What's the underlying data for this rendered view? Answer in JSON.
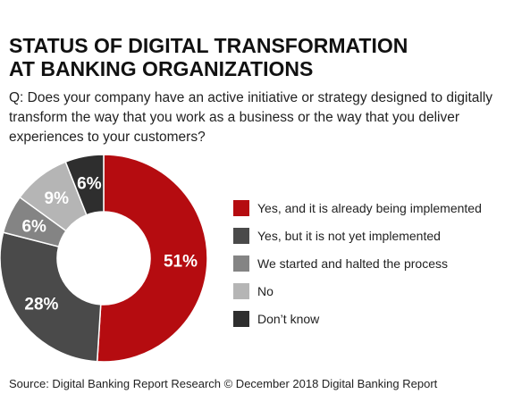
{
  "title_lines": [
    "STATUS OF DIGITAL TRANSFORMATION",
    "AT BANKING ORGANIZATIONS"
  ],
  "question": "Q: Does your company have an active initiative or strategy designed to digitally transform the way that you work as a business or the way that you deliver experiences to your customers?",
  "source": "Source: Digital Banking Report Research © December 2018 Digital Banking Report",
  "chart_data": {
    "type": "pie",
    "style": "donut",
    "categories": [
      "Yes, and it is already being implemented",
      "Yes, but it is not yet implemented",
      "We started and halted the process",
      "No",
      "Don’t know"
    ],
    "values": [
      51,
      28,
      6,
      9,
      6
    ],
    "labels": [
      "51%",
      "28%",
      "6%",
      "9%",
      "6%"
    ],
    "colors": [
      "#b50c10",
      "#4a4a4a",
      "#848484",
      "#b5b5b5",
      "#2e2e2e"
    ],
    "label_colors": [
      "#ffffff",
      "#ffffff",
      "#ffffff",
      "#ffffff",
      "#ffffff"
    ],
    "legend_position": "right",
    "start": "top",
    "direction": "clockwise"
  }
}
